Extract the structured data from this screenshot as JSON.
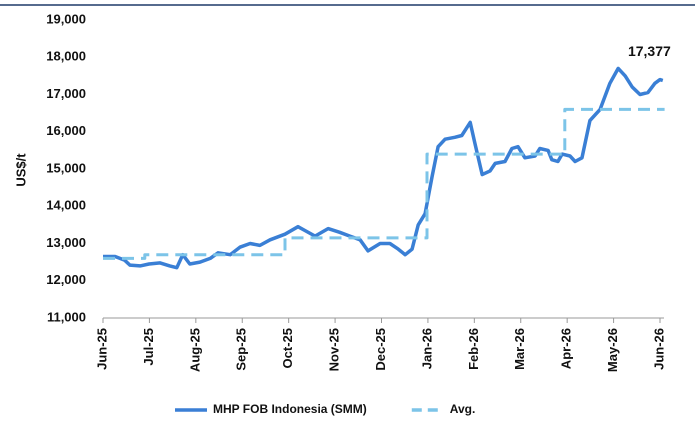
{
  "chart_data": {
    "type": "line",
    "y_label": "US$/t",
    "ylim": [
      11000,
      19000
    ],
    "yticks": [
      {
        "value": 11000,
        "label": "11,000"
      },
      {
        "value": 12000,
        "label": "12,000"
      },
      {
        "value": 13000,
        "label": "13,000"
      },
      {
        "value": 14000,
        "label": "14,000"
      },
      {
        "value": 15000,
        "label": "15,000"
      },
      {
        "value": 16000,
        "label": "16,000"
      },
      {
        "value": 17000,
        "label": "17,000"
      },
      {
        "value": 18000,
        "label": "18,000"
      },
      {
        "value": 19000,
        "label": "19,000"
      }
    ],
    "xlim": [
      0,
      12
    ],
    "xticks": [
      {
        "value": 0,
        "label": "Jun-25"
      },
      {
        "value": 1,
        "label": "Jul-25"
      },
      {
        "value": 2,
        "label": "Aug-25"
      },
      {
        "value": 3,
        "label": "Sep-25"
      },
      {
        "value": 4,
        "label": "Oct-25"
      },
      {
        "value": 5,
        "label": "Nov-25"
      },
      {
        "value": 6,
        "label": "Dec-25"
      },
      {
        "value": 7,
        "label": "Jan-26"
      },
      {
        "value": 8,
        "label": "Feb-26"
      },
      {
        "value": 9,
        "label": "Mar-26"
      },
      {
        "value": 10,
        "label": "Apr-26"
      },
      {
        "value": 11,
        "label": "May-26"
      },
      {
        "value": 12,
        "label": "Jun-26"
      }
    ],
    "legend": "bottom",
    "series": [
      {
        "name": "MHP FOB Indonesia (SMM)",
        "color": "#3a7fd5",
        "dash": false,
        "x": [
          0,
          0.26,
          0.47,
          0.58,
          0.8,
          0.99,
          1.23,
          1.44,
          1.59,
          1.72,
          1.87,
          2.09,
          2.31,
          2.48,
          2.74,
          2.95,
          3.17,
          3.38,
          3.6,
          3.92,
          4.2,
          4.35,
          4.57,
          4.85,
          5.1,
          5.32,
          5.54,
          5.71,
          5.97,
          6.18,
          6.36,
          6.51,
          6.66,
          6.79,
          6.94,
          7.0,
          7.09,
          7.22,
          7.37,
          7.58,
          7.73,
          7.91,
          8.01,
          8.17,
          8.34,
          8.45,
          8.66,
          8.81,
          8.94,
          9.09,
          9.31,
          9.41,
          9.59,
          9.67,
          9.8,
          9.89,
          10.06,
          10.17,
          10.32,
          10.49,
          10.71,
          10.92,
          11.1,
          11.25,
          11.4,
          11.57,
          11.74,
          11.89,
          12.0,
          12.06
        ],
        "values": [
          12650,
          12650,
          12550,
          12420,
          12400,
          12450,
          12480,
          12400,
          12350,
          12700,
          12450,
          12500,
          12600,
          12750,
          12700,
          12900,
          13000,
          12950,
          13100,
          13250,
          13450,
          13350,
          13200,
          13400,
          13300,
          13200,
          13100,
          12800,
          13000,
          13000,
          12850,
          12700,
          12850,
          13500,
          13800,
          14200,
          14800,
          15600,
          15800,
          15850,
          15900,
          16250,
          15700,
          14850,
          14950,
          15150,
          15200,
          15550,
          15600,
          15300,
          15350,
          15550,
          15500,
          15250,
          15200,
          15400,
          15350,
          15200,
          15300,
          16300,
          16600,
          17300,
          17700,
          17500,
          17200,
          17000,
          17050,
          17300,
          17400,
          17377
        ]
      },
      {
        "name": "Avg.",
        "color": "#7cc4e8",
        "dash": true,
        "x": [
          0,
          0.9,
          0.9,
          3.92,
          3.92,
          6.98,
          6.98,
          9.95,
          9.95,
          12.1
        ],
        "values": [
          12600,
          12600,
          12700,
          12700,
          13150,
          13150,
          15400,
          15400,
          16600,
          16600
        ]
      }
    ],
    "annotations": [
      {
        "text": "17,377",
        "x": 12.06,
        "y": 17377
      }
    ]
  }
}
